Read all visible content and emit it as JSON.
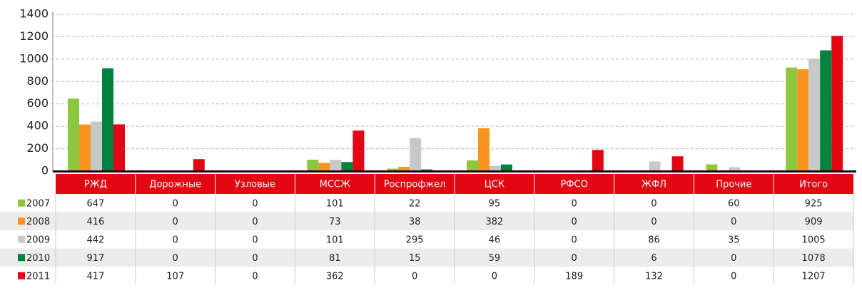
{
  "chart_data": {
    "type": "bar",
    "categories": [
      "РЖД",
      "Дорожные",
      "Узловые",
      "МССЖ",
      "Роспрофжел",
      "ЦСК",
      "РФСО",
      "ЖФЛ",
      "Прочие",
      "Итого"
    ],
    "series": [
      {
        "name": "2007",
        "color": "#8dc63f",
        "values": [
          647,
          0,
          0,
          101,
          22,
          95,
          0,
          0,
          60,
          925
        ]
      },
      {
        "name": "2008",
        "color": "#f7941d",
        "values": [
          416,
          0,
          0,
          73,
          38,
          382,
          0,
          0,
          0,
          909
        ]
      },
      {
        "name": "2009",
        "color": "#c8c8c8",
        "values": [
          442,
          0,
          0,
          101,
          295,
          46,
          0,
          86,
          35,
          1005
        ]
      },
      {
        "name": "2010",
        "color": "#00843d",
        "values": [
          917,
          0,
          0,
          81,
          15,
          59,
          0,
          6,
          0,
          1078
        ]
      },
      {
        "name": "2011",
        "color": "#e30613",
        "values": [
          417,
          107,
          0,
          362,
          0,
          0,
          189,
          132,
          0,
          1207
        ]
      }
    ],
    "ylim": [
      0,
      1400
    ],
    "yticks": [
      0,
      200,
      400,
      600,
      800,
      1000,
      1200,
      1400
    ],
    "grid": true,
    "header_color": "#e30613"
  }
}
